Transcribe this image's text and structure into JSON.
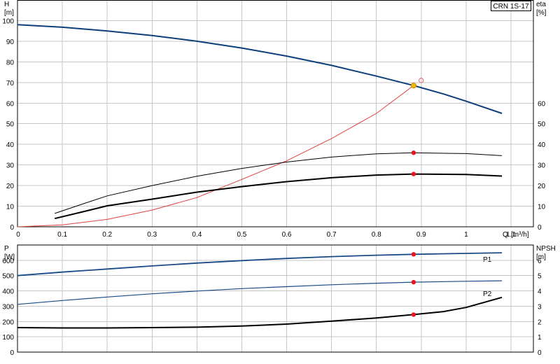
{
  "model": "CRN 1S-17",
  "colors": {
    "head": "#0d3f7a",
    "power": "#1a4b86",
    "efficiency_curve": "#e04040",
    "duty_point": "#e8141e",
    "operating_point": "#f5b800",
    "grid": "#c6c6c6",
    "text": "#000000"
  },
  "chart_data": [
    {
      "type": "line",
      "panel": "upper",
      "x_label": "Q [m³/h]",
      "x_label_q": "Q",
      "x_label_unit": "[m³/h]",
      "left_axis": {
        "label": "H",
        "unit": "[m]",
        "range": [
          0,
          110
        ],
        "ticks": [
          "0",
          "10",
          "20",
          "30",
          "40",
          "50",
          "60",
          "70",
          "80",
          "90",
          "100"
        ]
      },
      "right_axis": {
        "label": "eta",
        "unit": "[%]",
        "range": [
          0,
          110
        ],
        "ticks": [
          "0",
          "10",
          "20",
          "30",
          "40",
          "50",
          "60"
        ]
      },
      "x_range": [
        0,
        1.15
      ],
      "x_ticks": [
        "0",
        "0.1",
        "0.2",
        "0.3",
        "0.4",
        "0.5",
        "0.6",
        "0.7",
        "0.8",
        "0.9",
        "1",
        "1.1"
      ],
      "grid": true,
      "series": [
        {
          "id": "head_curve",
          "axis": "left",
          "x": [
            0,
            0.1,
            0.2,
            0.3,
            0.4,
            0.5,
            0.6,
            0.7,
            0.8,
            0.883,
            0.95,
            1.0,
            1.08
          ],
          "y": [
            98,
            96.8,
            95,
            92.8,
            90,
            86.7,
            82.8,
            78.3,
            73.1,
            68.5,
            64.4,
            60.9,
            55
          ]
        },
        {
          "id": "system_curve",
          "axis": "left",
          "x": [
            0,
            0.1,
            0.2,
            0.3,
            0.4,
            0.5,
            0.6,
            0.7,
            0.8,
            0.883
          ],
          "y": [
            0,
            0.9,
            3.6,
            8.1,
            14.2,
            23,
            32,
            42.8,
            55,
            68.5
          ]
        },
        {
          "id": "efficiency_total",
          "axis": "right",
          "x": [
            0.083,
            0.15,
            0.2,
            0.3,
            0.4,
            0.5,
            0.6,
            0.7,
            0.8,
            0.883,
            1.0,
            1.08
          ],
          "y": [
            6.5,
            11.4,
            15,
            20,
            24.5,
            28.3,
            31.4,
            33.8,
            35.4,
            35.9,
            35.5,
            34.5
          ]
        },
        {
          "id": "efficiency_hydraulic",
          "axis": "right",
          "x": [
            0.083,
            0.15,
            0.2,
            0.3,
            0.4,
            0.5,
            0.6,
            0.7,
            0.8,
            0.883,
            1.0,
            1.08
          ],
          "y": [
            4,
            7.5,
            10.2,
            13.4,
            16.8,
            19.5,
            21.9,
            23.8,
            25.1,
            25.6,
            25.4,
            24.6
          ]
        }
      ],
      "duty_points": [
        {
          "x": 0.883,
          "y": 35.9,
          "axis": "right",
          "kind": "efficiency"
        },
        {
          "x": 0.883,
          "y": 25.6,
          "axis": "right",
          "kind": "efficiency"
        }
      ],
      "operating_point": {
        "x": 0.883,
        "y": 68.5
      },
      "requested_point": {
        "x": 0.9,
        "y": 71
      }
    },
    {
      "type": "line",
      "panel": "lower",
      "left_axis": {
        "label": "P",
        "unit": "[W]",
        "range": [
          0,
          700
        ],
        "ticks": [
          "0",
          "100",
          "200",
          "300",
          "400",
          "500",
          "600"
        ]
      },
      "right_axis": {
        "label": "NPSH",
        "unit": "[m]",
        "range": [
          0,
          7
        ],
        "ticks": [
          "0",
          "1",
          "2",
          "3",
          "4",
          "5",
          "6"
        ]
      },
      "x_range": [
        0,
        1.15
      ],
      "grid": true,
      "series": [
        {
          "id": "P1",
          "name": "P1",
          "axis": "left",
          "x": [
            0,
            0.1,
            0.2,
            0.3,
            0.4,
            0.5,
            0.6,
            0.7,
            0.8,
            0.883,
            1.0,
            1.08
          ],
          "y": [
            500,
            523,
            543,
            563,
            582,
            598,
            612,
            624,
            633,
            639,
            645,
            649
          ]
        },
        {
          "id": "P2",
          "name": "P2",
          "axis": "left",
          "x": [
            0,
            0.1,
            0.2,
            0.3,
            0.4,
            0.5,
            0.6,
            0.7,
            0.8,
            0.883,
            1.0,
            1.08
          ],
          "y": [
            312,
            337,
            360,
            381,
            399,
            415,
            428,
            440,
            450,
            457,
            463,
            466
          ]
        },
        {
          "id": "NPSH",
          "axis": "right",
          "x": [
            0,
            0.1,
            0.2,
            0.3,
            0.4,
            0.5,
            0.6,
            0.7,
            0.8,
            0.883,
            0.95,
            1.0,
            1.08
          ],
          "y": [
            1.6,
            1.58,
            1.58,
            1.6,
            1.63,
            1.7,
            1.83,
            2.02,
            2.23,
            2.45,
            2.65,
            2.92,
            3.58
          ]
        }
      ],
      "duty_points": [
        {
          "x": 0.883,
          "y": 639,
          "axis": "left",
          "kind": "power"
        },
        {
          "x": 0.883,
          "y": 457,
          "axis": "left",
          "kind": "power"
        },
        {
          "x": 0.883,
          "y": 2.45,
          "axis": "right",
          "kind": "npsh"
        }
      ]
    }
  ]
}
